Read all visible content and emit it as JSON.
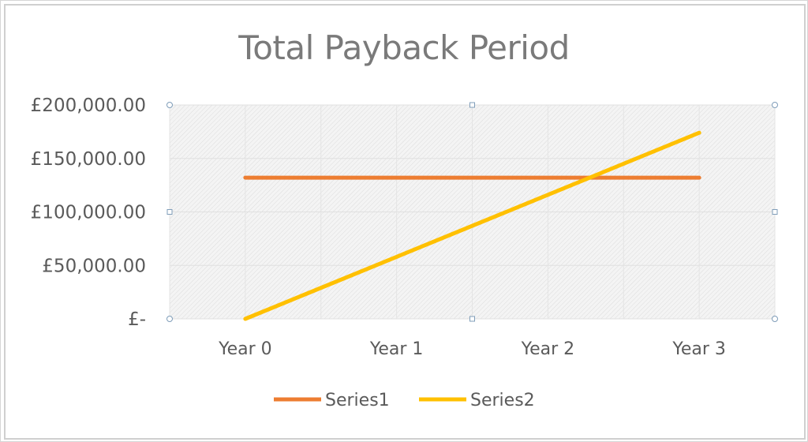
{
  "chart_data": {
    "type": "line",
    "title": "Total Payback Period",
    "categories": [
      "Year 0",
      "Year 1",
      "Year 2",
      "Year 3"
    ],
    "y_tick_labels": [
      "£200,000.00",
      "£150,000.00",
      "£100,000.00",
      "£50,000.00",
      "£-"
    ],
    "y_ticks": [
      200000,
      150000,
      100000,
      50000,
      0
    ],
    "ylim": [
      0,
      200000
    ],
    "grid": true,
    "legend_position": "bottom",
    "series": [
      {
        "name": "Series1",
        "color": "#ED7D31",
        "values": [
          132000,
          132000,
          132000,
          132000
        ]
      },
      {
        "name": "Series2",
        "color": "#FFC000",
        "values": [
          0,
          58000,
          116000,
          174000
        ]
      }
    ]
  }
}
